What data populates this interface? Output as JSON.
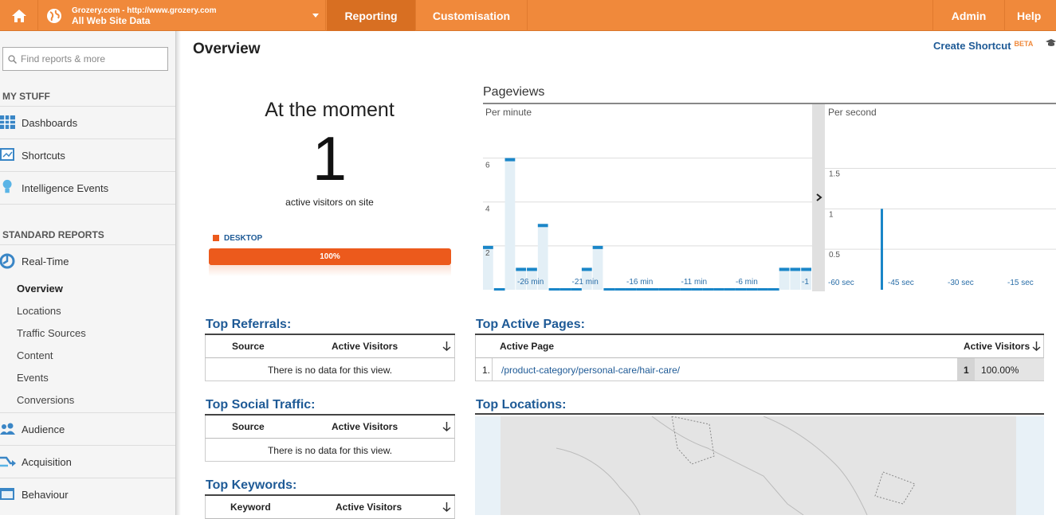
{
  "header": {
    "account_url": "Grozery.com - http://www.grozery.com",
    "account_view": "All Web Site Data",
    "tabs": {
      "reporting": "Reporting",
      "customisation": "Customisation",
      "admin": "Admin",
      "help": "Help"
    }
  },
  "sidebar": {
    "search_placeholder": "Find reports & more",
    "my_stuff": "MY STUFF",
    "dashboards": "Dashboards",
    "shortcuts": "Shortcuts",
    "intelligence": "Intelligence Events",
    "standard_reports": "STANDARD REPORTS",
    "realtime": "Real-Time",
    "sub": [
      "Overview",
      "Locations",
      "Traffic Sources",
      "Content",
      "Events",
      "Conversions"
    ],
    "audience": "Audience",
    "acquisition": "Acquisition",
    "behaviour": "Behaviour"
  },
  "main": {
    "title": "Overview",
    "create_shortcut": "Create Shortcut",
    "beta": "BETA",
    "moment": {
      "title": "At the moment",
      "count": "1",
      "subtitle": "active visitors on site",
      "device": "DESKTOP",
      "device_pct": "100%",
      "device_fraction": 1.0
    },
    "pageviews": {
      "title": "Pageviews",
      "per_minute": "Per minute",
      "per_second": "Per second"
    },
    "top_referrals": {
      "title": "Top Referrals:",
      "col1": "Source",
      "col2": "Active Visitors",
      "empty": "There is no data for this view."
    },
    "top_social": {
      "title": "Top Social Traffic:",
      "col1": "Source",
      "col2": "Active Visitors",
      "empty": "There is no data for this view."
    },
    "top_keywords": {
      "title": "Top Keywords:",
      "col1": "Keyword",
      "col2": "Active Visitors"
    },
    "top_pages": {
      "title": "Top Active Pages:",
      "col1": "Active Page",
      "col2": "Active Visitors",
      "rows": [
        {
          "idx": "1.",
          "page": "/product-category/personal-care/hair-care/",
          "visitors": "1",
          "pct": "100.00%"
        }
      ]
    },
    "top_locations": {
      "title": "Top Locations:"
    }
  },
  "chart_data": [
    {
      "type": "bar",
      "title": "Per minute",
      "categories": [
        "-30",
        "-29",
        "-28",
        "-27",
        "-26",
        "-25",
        "-24",
        "-23",
        "-22",
        "-21",
        "-20",
        "-19",
        "-18",
        "-17",
        "-16",
        "-15",
        "-14",
        "-13",
        "-12",
        "-11",
        "-10",
        "-9",
        "-8",
        "-7",
        "-6",
        "-5",
        "-4",
        "-3",
        "-2",
        "-1"
      ],
      "x_tick_labels": [
        "-26 min",
        "-21 min",
        "-16 min",
        "-11 min",
        "-6 min",
        "-1"
      ],
      "values": [
        2,
        0,
        6,
        1,
        1,
        3,
        0,
        0,
        0,
        1,
        2,
        0,
        0,
        0,
        0,
        0,
        0,
        0,
        0,
        0,
        0,
        0,
        0,
        0,
        0,
        0,
        0,
        1,
        1,
        1
      ],
      "y_ticks": [
        "2",
        "4",
        "6"
      ],
      "ylim": [
        0,
        7
      ]
    },
    {
      "type": "bar",
      "title": "Per second",
      "x_tick_labels": [
        "-60 sec",
        "-45 sec",
        "-30 sec",
        "-15 sec"
      ],
      "x": [
        -48
      ],
      "values": [
        1
      ],
      "y_ticks": [
        "0.5",
        "1",
        "1.5"
      ],
      "ylim": [
        0,
        1.8
      ]
    }
  ]
}
